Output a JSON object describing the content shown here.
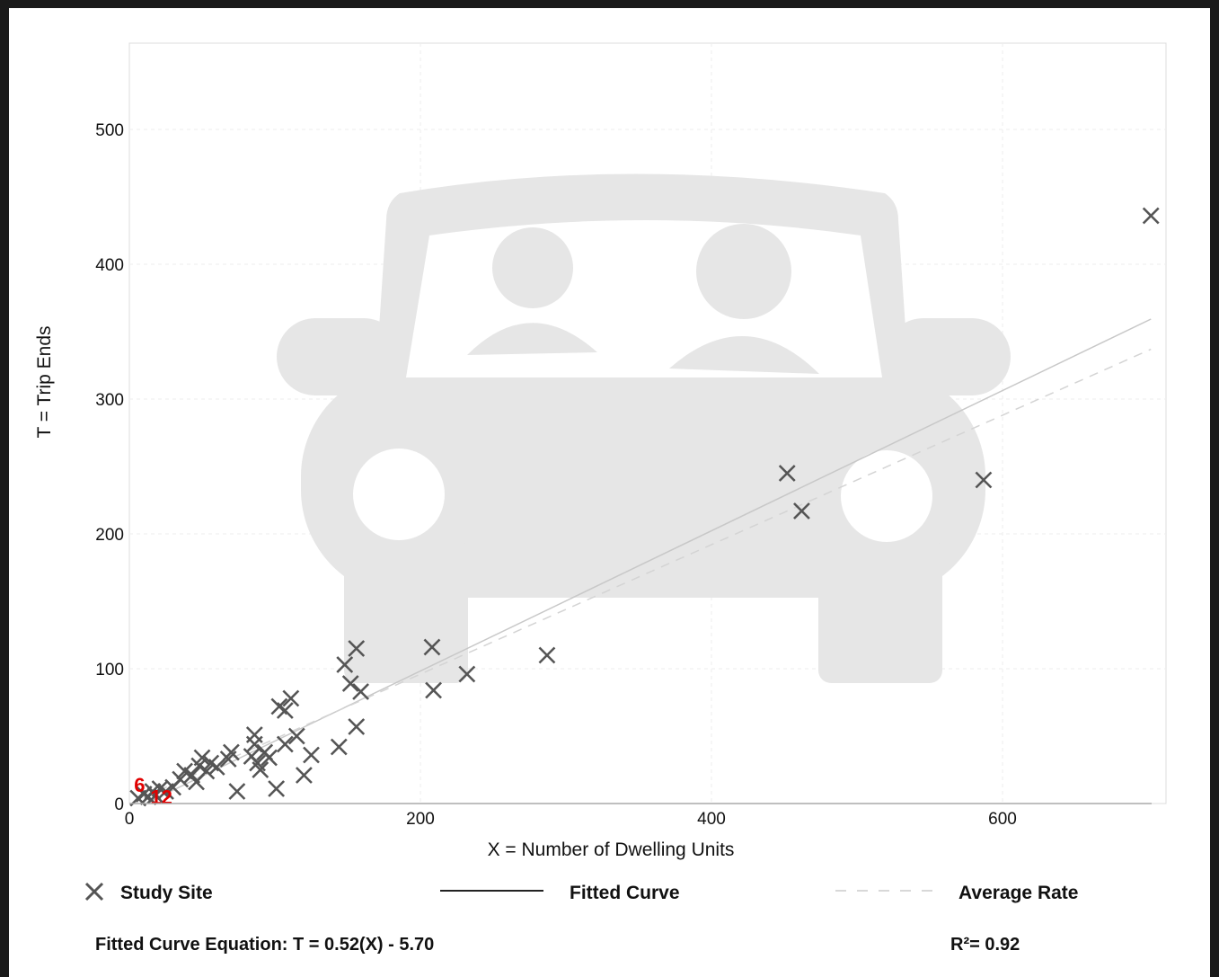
{
  "chart_data": {
    "type": "scatter",
    "xlabel": "X = Number of Dwelling Units",
    "ylabel": "T = Trip Ends",
    "xlim": [
      0,
      715
    ],
    "ylim": [
      0,
      565
    ],
    "x_ticks": [
      0,
      200,
      400,
      600
    ],
    "y_ticks": [
      0,
      100,
      200,
      300,
      400,
      500
    ],
    "grid": true,
    "legend_placement": "bottom",
    "legend": {
      "study_site": "Study Site",
      "fitted_curve": "Fitted Curve",
      "average_rate": "Average Rate"
    },
    "fitted_curve": {
      "slope": 0.52,
      "intercept": -5.7,
      "x_range": [
        10,
        702
      ]
    },
    "average_rate": {
      "slope": 0.48,
      "x_range": [
        10,
        702
      ]
    },
    "equation_text": "Fitted Curve Equation: T = 0.52(X) - 5.70",
    "r2_text": "R²= 0.92",
    "cluster_labels": [
      {
        "text": "6",
        "x": 7,
        "y": 14
      },
      {
        "text": "12",
        "x": 22,
        "y": 5
      }
    ],
    "points": [
      [
        6,
        4
      ],
      [
        10,
        7
      ],
      [
        13,
        5
      ],
      [
        16,
        9
      ],
      [
        18,
        6
      ],
      [
        21,
        11
      ],
      [
        25,
        9
      ],
      [
        30,
        12
      ],
      [
        35,
        18
      ],
      [
        38,
        24
      ],
      [
        43,
        21
      ],
      [
        46,
        16
      ],
      [
        48,
        28
      ],
      [
        50,
        34
      ],
      [
        53,
        24
      ],
      [
        56,
        30
      ],
      [
        60,
        27
      ],
      [
        68,
        33
      ],
      [
        70,
        38
      ],
      [
        74,
        9
      ],
      [
        84,
        35
      ],
      [
        86,
        44
      ],
      [
        86,
        51
      ],
      [
        88,
        30
      ],
      [
        90,
        25
      ],
      [
        93,
        38
      ],
      [
        96,
        34
      ],
      [
        101,
        11
      ],
      [
        103,
        72
      ],
      [
        107,
        69
      ],
      [
        107,
        44
      ],
      [
        111,
        78
      ],
      [
        115,
        50
      ],
      [
        120,
        21
      ],
      [
        125,
        36
      ],
      [
        144,
        42
      ],
      [
        148,
        103
      ],
      [
        152,
        89
      ],
      [
        156,
        115
      ],
      [
        159,
        83
      ],
      [
        156,
        57
      ],
      [
        208,
        116
      ],
      [
        209,
        84
      ],
      [
        232,
        96
      ],
      [
        287,
        110
      ],
      [
        452,
        245
      ],
      [
        462,
        217
      ],
      [
        587,
        240
      ],
      [
        702,
        436
      ]
    ],
    "colors": {
      "marker": "#555555",
      "fitted": "#c8c8c8",
      "average": "#d4d4d4",
      "cluster_label": "#e10000",
      "watermark": "#e6e6e6",
      "grid": "#eeeeee"
    }
  }
}
